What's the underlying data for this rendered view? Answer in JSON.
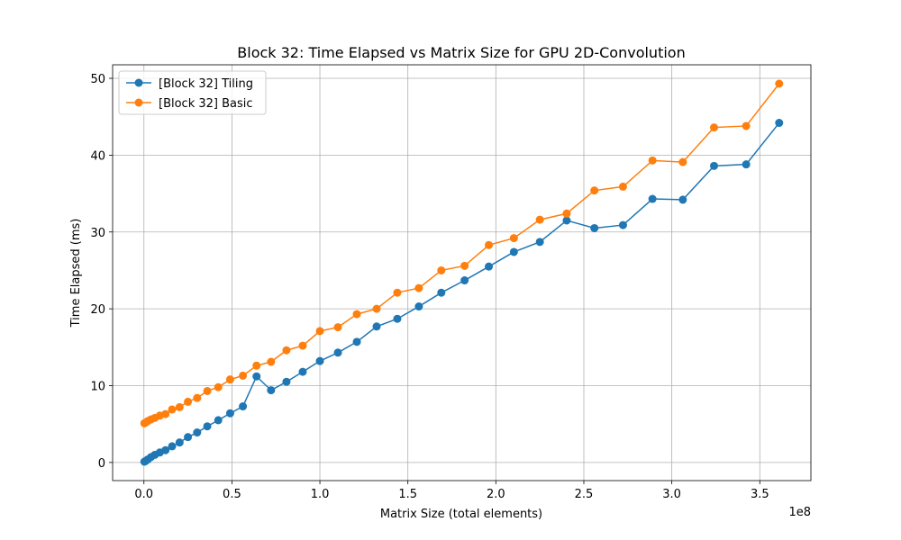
{
  "chart_data": {
    "type": "line",
    "title": "Block 32: Time Elapsed vs Matrix Size for GPU 2D-Convolution",
    "xlabel": "Matrix Size (total elements)",
    "ylabel": "Time Elapsed (ms)",
    "x_offset_label": "1e8",
    "x": [
      250000,
      1000000,
      2250000,
      4000000,
      6250000,
      9000000,
      12250000,
      16000000,
      20250000,
      25000000,
      30250000,
      36000000,
      42250000,
      49000000,
      56250000,
      64000000,
      72250000,
      81000000,
      90250000,
      100000000,
      110250000,
      121000000,
      132250000,
      144000000,
      156250000,
      169000000,
      182250000,
      196000000,
      210250000,
      225000000,
      240250000,
      256000000,
      272250000,
      289000000,
      306250000,
      324000000,
      342250000,
      361000000
    ],
    "series": [
      {
        "name": "[Block 32] Tiling",
        "color": "#1f77b4",
        "values": [
          0.1,
          0.2,
          0.4,
          0.7,
          1.0,
          1.3,
          1.6,
          2.1,
          2.6,
          3.3,
          3.9,
          4.7,
          5.5,
          6.4,
          7.3,
          11.2,
          9.4,
          10.5,
          11.8,
          13.2,
          14.3,
          15.7,
          17.7,
          18.7,
          20.3,
          22.1,
          23.7,
          25.5,
          27.4,
          28.7,
          31.5,
          30.5,
          30.9,
          34.3,
          34.2,
          38.6,
          38.8,
          44.2
        ]
      },
      {
        "name": "[Block 32] Basic",
        "color": "#ff7f0e",
        "values": [
          5.1,
          5.2,
          5.4,
          5.6,
          5.8,
          6.1,
          6.3,
          6.9,
          7.2,
          7.9,
          8.4,
          9.3,
          9.8,
          10.8,
          11.3,
          12.6,
          13.1,
          14.6,
          15.2,
          17.1,
          17.6,
          19.3,
          20.0,
          22.1,
          22.7,
          25.0,
          25.6,
          28.3,
          29.2,
          31.6,
          32.4,
          35.4,
          35.9,
          39.3,
          39.1,
          43.6,
          43.8,
          49.3
        ]
      }
    ],
    "xlim": [
      -17790000,
      379040000
    ],
    "xticks": [
      {
        "value": 0,
        "label": "0.0"
      },
      {
        "value": 50000000,
        "label": "0.5"
      },
      {
        "value": 100000000,
        "label": "1.0"
      },
      {
        "value": 150000000,
        "label": "1.5"
      },
      {
        "value": 200000000,
        "label": "2.0"
      },
      {
        "value": 250000000,
        "label": "2.5"
      },
      {
        "value": 300000000,
        "label": "3.0"
      },
      {
        "value": 350000000,
        "label": "3.5"
      }
    ],
    "ylim": [
      -2.36,
      51.76
    ],
    "yticks": [
      0,
      10,
      20,
      30,
      40,
      50
    ],
    "grid": true,
    "legend": "upper-left"
  }
}
